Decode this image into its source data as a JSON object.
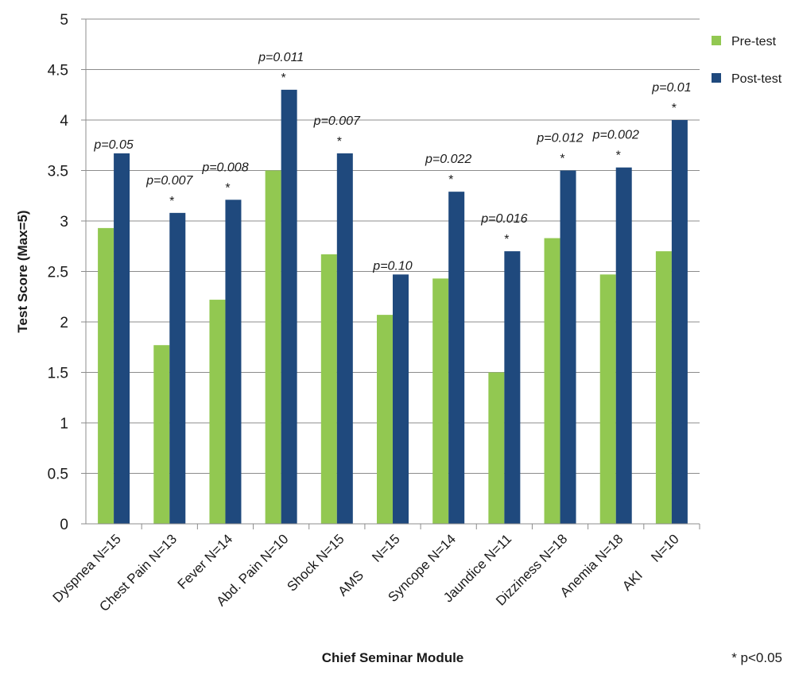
{
  "chart_data": {
    "type": "bar",
    "xlabel": "Chief Seminar Module",
    "ylabel": "Test Score (Max=5)",
    "ylim": [
      0,
      5
    ],
    "yticks": [
      "0",
      "0.5",
      "1",
      "1.5",
      "2",
      "2.5",
      "3",
      "3.5",
      "4",
      "4.5",
      "5"
    ],
    "grid": "horizontal",
    "legend_position": "top-right",
    "categories": [
      "Dyspnea N=15",
      "Chest Pain N=13",
      "Fever N=14",
      "Abd. Pain N=10",
      "Shock N=15",
      "AMS     N=15",
      "Syncope N=14",
      "Jaundice N=11",
      "Dizziness N=18",
      "Anemia N=18",
      "AKI     N=10"
    ],
    "series": [
      {
        "name": "Pre-test",
        "color": "#92C851",
        "values": [
          2.93,
          1.77,
          2.22,
          3.5,
          2.67,
          2.07,
          2.43,
          1.5,
          2.83,
          2.47,
          2.7
        ]
      },
      {
        "name": "Post-test",
        "color": "#1F497D",
        "values": [
          3.67,
          3.08,
          3.21,
          4.3,
          3.67,
          2.47,
          3.29,
          2.7,
          3.5,
          3.53,
          4.0
        ]
      }
    ],
    "p_values": [
      "p=0.05",
      "p=0.007",
      "p=0.008",
      "p=0.011",
      "p=0.007",
      "p=0.10",
      "p=0.022",
      "p=0.016",
      "p=0.012",
      "p=0.002",
      "p=0.01"
    ],
    "significant": [
      false,
      true,
      true,
      true,
      true,
      false,
      true,
      true,
      true,
      true,
      true
    ],
    "significance_marker": "*",
    "footnote": "* p<0.05"
  }
}
